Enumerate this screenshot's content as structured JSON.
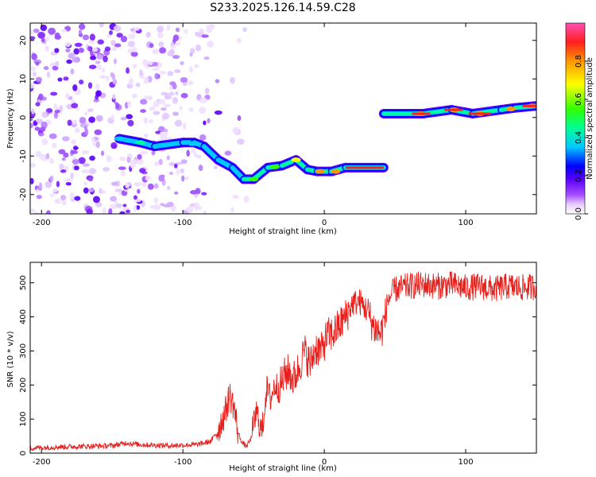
{
  "figure": {
    "title": "S233.2025.126.14.59.C28"
  },
  "chart_data": [
    {
      "type": "heatmap",
      "title": "S233.2025.126.14.59.C28",
      "xlabel": "Height of straight line (km)",
      "ylabel": "Frequency (Hz)",
      "xlim": [
        -208,
        150
      ],
      "ylim": [
        -25,
        24.5
      ],
      "xticks": [
        -200,
        -100,
        0,
        100
      ],
      "yticks": [
        -20,
        -10,
        0,
        10,
        20
      ],
      "colorbar": {
        "label": "Normalized spectral amplitude",
        "range": [
          0.0,
          1.0
        ],
        "ticks": [
          "0.0",
          "0.2",
          "0.4",
          "0.6",
          "0.8"
        ],
        "colors": [
          "#ffffff",
          "#e6ccff",
          "#a64dff",
          "#5a00ff",
          "#0000ff",
          "#00c8ff",
          "#00ff96",
          "#32ff00",
          "#ffff00",
          "#ff9600",
          "#ff1e1e",
          "#ff50b4"
        ]
      },
      "ridge": [
        {
          "x": -145,
          "y": -5.5
        },
        {
          "x": -130,
          "y": -6.5
        },
        {
          "x": -120,
          "y": -7.5
        },
        {
          "x": -100,
          "y": -6.5
        },
        {
          "x": -92,
          "y": -6.5
        },
        {
          "x": -85,
          "y": -7.5
        },
        {
          "x": -75,
          "y": -11
        },
        {
          "x": -65,
          "y": -13
        },
        {
          "x": -57,
          "y": -16
        },
        {
          "x": -50,
          "y": -16
        },
        {
          "x": -40,
          "y": -13
        },
        {
          "x": -30,
          "y": -12.5
        },
        {
          "x": -20,
          "y": -11
        },
        {
          "x": -12,
          "y": -13.5
        },
        {
          "x": -5,
          "y": -14
        },
        {
          "x": 5,
          "y": -14
        },
        {
          "x": 15,
          "y": -13
        },
        {
          "x": 42,
          "y": -13
        },
        {
          "x": 42,
          "y": 1
        },
        {
          "x": 70,
          "y": 1
        },
        {
          "x": 90,
          "y": 2
        },
        {
          "x": 105,
          "y": 1
        },
        {
          "x": 125,
          "y": 2
        },
        {
          "x": 135,
          "y": 2.5
        },
        {
          "x": 150,
          "y": 3
        }
      ]
    },
    {
      "type": "line",
      "xlabel": "Height of straight line (km)",
      "ylabel": "SNR (10 * v/v)",
      "xlim": [
        -208,
        150
      ],
      "ylim": [
        0,
        560
      ],
      "xticks": [
        -200,
        -100,
        0,
        100
      ],
      "yticks": [
        0,
        100,
        200,
        300,
        400,
        500
      ],
      "color": "#e8201c",
      "series": [
        {
          "x": [
            -208,
            -190,
            -170,
            -150,
            -140,
            -130,
            -110,
            -90,
            -80,
            -75,
            -70,
            -67,
            -64,
            -61,
            -58,
            -55,
            -52,
            -48,
            -44,
            -41,
            -38,
            -35,
            -32,
            -28,
            -25,
            -22,
            -18,
            -14,
            -10,
            -6,
            -2,
            2,
            6,
            10,
            15,
            20,
            25,
            30,
            35,
            40,
            43,
            45,
            50,
            60,
            70,
            80,
            90,
            100,
            110,
            120,
            130,
            140,
            150
          ],
          "y": [
            15,
            18,
            20,
            22,
            30,
            25,
            22,
            25,
            35,
            70,
            120,
            170,
            140,
            60,
            30,
            20,
            40,
            120,
            60,
            190,
            160,
            200,
            190,
            230,
            240,
            215,
            250,
            300,
            260,
            310,
            300,
            345,
            350,
            370,
            400,
            440,
            445,
            420,
            370,
            350,
            400,
            450,
            480,
            490,
            495,
            490,
            495,
            485,
            490,
            480,
            490,
            485,
            490
          ]
        }
      ]
    }
  ]
}
